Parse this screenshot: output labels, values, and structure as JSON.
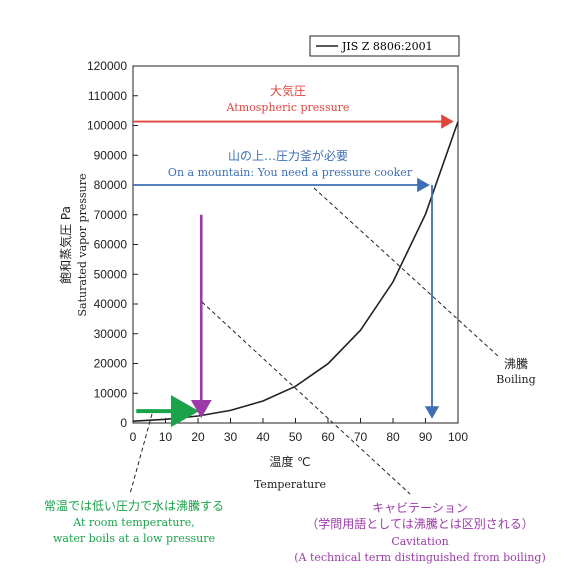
{
  "chart_data": {
    "type": "line",
    "title": "",
    "legend": {
      "label": "JIS Z 8806:2001",
      "position": "top-right"
    },
    "xlabel_jp": "温度 ℃",
    "xlabel_en": "Temperature",
    "ylabel_jp": "飽和蒸気圧 Pa",
    "ylabel_en": "Saturated vapor pressure",
    "xlim": [
      0,
      100
    ],
    "ylim": [
      0,
      120000
    ],
    "x_ticks": [
      0,
      10,
      20,
      30,
      40,
      50,
      60,
      70,
      80,
      90,
      100
    ],
    "y_ticks": [
      0,
      10000,
      20000,
      30000,
      40000,
      50000,
      60000,
      70000,
      80000,
      90000,
      100000,
      110000,
      120000
    ],
    "grid": false,
    "series": [
      {
        "name": "JIS Z 8806:2001",
        "color": "#222222",
        "x": [
          0,
          10,
          20,
          30,
          40,
          50,
          60,
          70,
          80,
          90,
          100
        ],
        "y": [
          611,
          1228,
          2339,
          4247,
          7384,
          12352,
          19946,
          31201,
          47414,
          70182,
          101325
        ]
      }
    ],
    "annotations": {
      "atmospheric": {
        "jp": "大気圧",
        "en": "Atmospheric pressure",
        "color": "#e0463c",
        "y": 101325
      },
      "mountain": {
        "jp": "山の上…圧力釜が必要",
        "en": "On a mountain: You need a pressure cooker",
        "color": "#3d6fb6",
        "y": 80000,
        "x_drop": 92
      },
      "room_temp": {
        "jp": "常温では低い圧力で水は沸騰する",
        "en_line1": "At room temperature,",
        "en_line2": "water boils at a low pressure",
        "color": "#1aa34a",
        "y": 4000,
        "x_end": 20
      },
      "cavitation": {
        "jp": "キャビテーション",
        "jp2": "（学問用語としては沸騰とは区別される）",
        "en1": "Cavitation",
        "en2": "(A technical term distinguished from boiling)",
        "color": "#9b3aa8",
        "x": 21,
        "y_top": 70000
      },
      "boiling": {
        "jp": "沸騰",
        "en": "Boiling"
      }
    }
  }
}
